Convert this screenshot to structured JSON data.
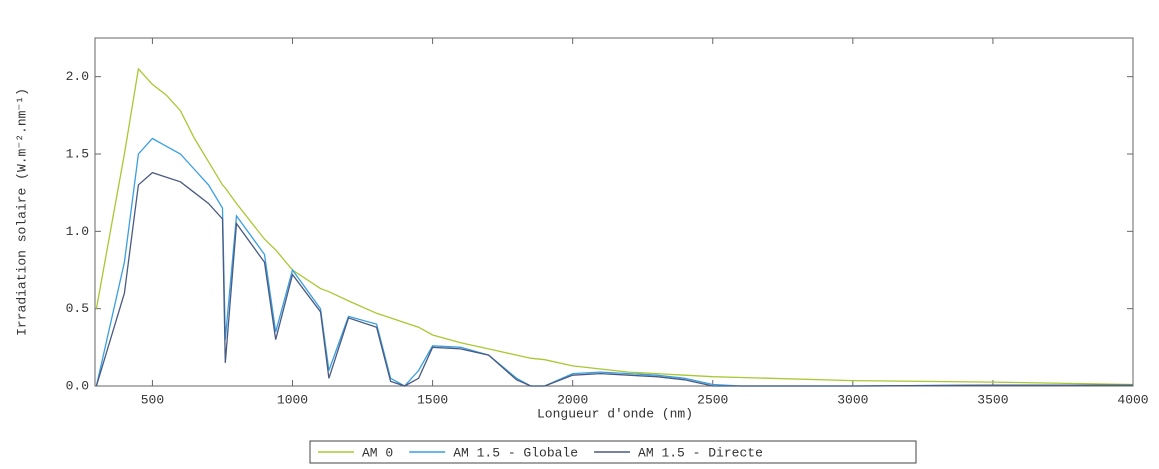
{
  "chart_data": {
    "type": "line",
    "x_label": "Longueur d'onde (nm)",
    "y_label": "Irradiation solaire (W.m⁻².nm⁻¹)",
    "x": [
      300,
      350,
      400,
      450,
      500,
      550,
      600,
      650,
      700,
      750,
      760,
      800,
      900,
      940,
      1000,
      1100,
      1130,
      1200,
      1300,
      1350,
      1400,
      1450,
      1500,
      1600,
      1700,
      1800,
      1850,
      1900,
      2000,
      2100,
      2200,
      2300,
      2400,
      2500,
      2600,
      3000,
      3500,
      4000
    ],
    "series": [
      {
        "name": "AM 0",
        "color": "#a8c832",
        "values": [
          0.5,
          1.0,
          1.5,
          2.05,
          1.95,
          1.88,
          1.78,
          1.6,
          1.45,
          1.3,
          1.28,
          1.18,
          0.95,
          0.88,
          0.75,
          0.63,
          0.61,
          0.55,
          0.47,
          0.44,
          0.41,
          0.38,
          0.33,
          0.28,
          0.24,
          0.2,
          0.18,
          0.17,
          0.13,
          0.11,
          0.09,
          0.08,
          0.07,
          0.06,
          0.055,
          0.035,
          0.025,
          0.01
        ]
      },
      {
        "name": "AM 1.5 - Globale",
        "color": "#3a9ee0",
        "values": [
          0.0,
          0.4,
          0.8,
          1.5,
          1.6,
          1.55,
          1.5,
          1.4,
          1.3,
          1.15,
          0.3,
          1.1,
          0.85,
          0.35,
          0.75,
          0.5,
          0.1,
          0.45,
          0.4,
          0.05,
          0.0,
          0.1,
          0.26,
          0.25,
          0.2,
          0.05,
          0.0,
          0.0,
          0.08,
          0.09,
          0.08,
          0.07,
          0.05,
          0.01,
          0.0,
          0.0,
          0.005,
          0.005
        ]
      },
      {
        "name": "AM 1.5 - Directe",
        "color": "#4a5a80",
        "values": [
          0.0,
          0.3,
          0.6,
          1.3,
          1.38,
          1.35,
          1.32,
          1.25,
          1.18,
          1.08,
          0.15,
          1.05,
          0.8,
          0.3,
          0.72,
          0.48,
          0.05,
          0.44,
          0.38,
          0.03,
          0.0,
          0.05,
          0.25,
          0.24,
          0.2,
          0.04,
          0.0,
          0.0,
          0.07,
          0.08,
          0.07,
          0.06,
          0.04,
          0.0,
          0.0,
          0.0,
          0.005,
          0.005
        ]
      }
    ],
    "xlim": [
      295,
      4000
    ],
    "ylim": [
      0,
      2.25
    ],
    "xticks": [
      500,
      1000,
      1500,
      2000,
      2500,
      3000,
      3500,
      4000
    ],
    "yticks": [
      {
        "value": 0,
        "label": "0.0"
      },
      {
        "value": 0.5,
        "label": "0.5"
      },
      {
        "value": 1,
        "label": "1.0"
      },
      {
        "value": 1.5,
        "label": "1.5"
      },
      {
        "value": 2,
        "label": "2.0"
      }
    ],
    "legend": "bottom"
  }
}
